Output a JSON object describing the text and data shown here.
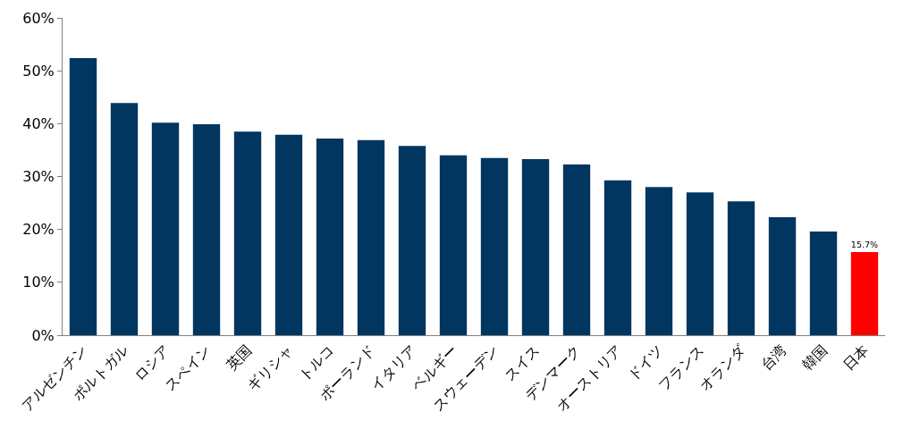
{
  "chart_data": {
    "type": "bar",
    "categories": [
      "アルゼンチン",
      "ポルトガル",
      "ロシア",
      "スペイン",
      "英国",
      "ギリシャ",
      "トルコ",
      "ポーランド",
      "イタリア",
      "ベルギー",
      "スウェーデン",
      "スイス",
      "デンマーク",
      "オーストリア",
      "ドイツ",
      "フランス",
      "オランダ",
      "台湾",
      "韓国",
      "日本"
    ],
    "values": [
      52.4,
      43.9,
      40.2,
      39.9,
      38.5,
      37.9,
      37.2,
      36.9,
      35.8,
      34.0,
      33.5,
      33.3,
      32.3,
      29.3,
      28.0,
      27.0,
      25.3,
      22.3,
      19.6,
      15.7
    ],
    "colors": [
      "#003660",
      "#003660",
      "#003660",
      "#003660",
      "#003660",
      "#003660",
      "#003660",
      "#003660",
      "#003660",
      "#003660",
      "#003660",
      "#003660",
      "#003660",
      "#003660",
      "#003660",
      "#003660",
      "#003660",
      "#003660",
      "#003660",
      "#ff0000"
    ],
    "value_labels": [
      null,
      null,
      null,
      null,
      null,
      null,
      null,
      null,
      null,
      null,
      null,
      null,
      null,
      null,
      null,
      null,
      null,
      null,
      null,
      "15.7%"
    ],
    "ylim": [
      0,
      60
    ],
    "yticks": [
      {
        "value": 0,
        "label": "0%"
      },
      {
        "value": 10,
        "label": "10%"
      },
      {
        "value": 20,
        "label": "20%"
      },
      {
        "value": 30,
        "label": "30%"
      },
      {
        "value": 40,
        "label": "40%"
      },
      {
        "value": 50,
        "label": "50%"
      },
      {
        "value": 60,
        "label": "60%"
      }
    ]
  }
}
